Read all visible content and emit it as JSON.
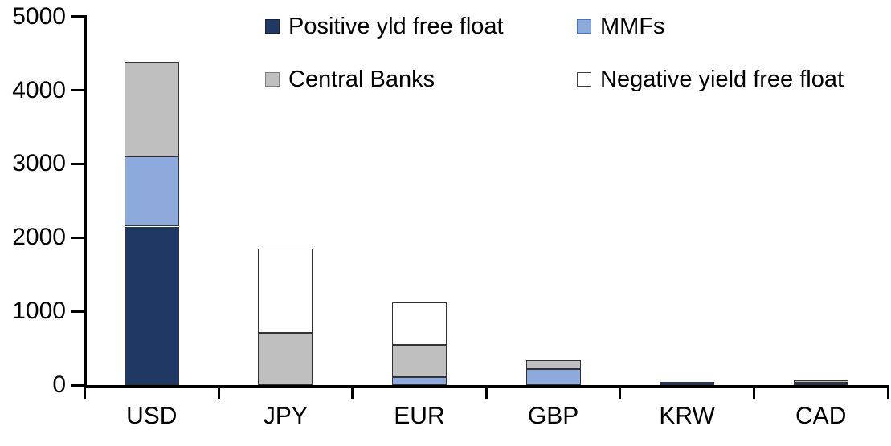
{
  "chart_data": {
    "type": "bar",
    "stacked": true,
    "title": "",
    "xlabel": "",
    "ylabel": "",
    "categories": [
      "USD",
      "JPY",
      "EUR",
      "GBP",
      "KRW",
      "CAD"
    ],
    "series": [
      {
        "name": "Positive yld free float",
        "color": "#1F3864",
        "swatch_border": "#17233F",
        "values": [
          2150,
          0,
          0,
          0,
          45,
          35
        ]
      },
      {
        "name": "MMFs",
        "color": "#8EA9DB",
        "swatch_border": "#4472C4",
        "values": [
          950,
          0,
          110,
          220,
          0,
          0
        ]
      },
      {
        "name": "Central Banks",
        "color": "#BFBFBF",
        "swatch_border": "#7F7F7F",
        "values": [
          1290,
          710,
          430,
          115,
          0,
          25
        ]
      },
      {
        "name": "Negative yield free float",
        "color": "#FFFFFF",
        "swatch_border": "#404040",
        "values": [
          0,
          1140,
          580,
          0,
          0,
          0
        ]
      }
    ],
    "totals": [
      4390,
      1850,
      1120,
      335,
      45,
      60
    ],
    "ylim": [
      0,
      5000
    ],
    "yticks": [
      0,
      1000,
      2000,
      3000,
      4000,
      5000
    ],
    "grid": false,
    "legend_position": "top",
    "legend_rows": 2,
    "legend_columns": 2,
    "axis_color": "#000000",
    "segment_border_color": "#333333",
    "background_color": "#FFFFFF"
  }
}
